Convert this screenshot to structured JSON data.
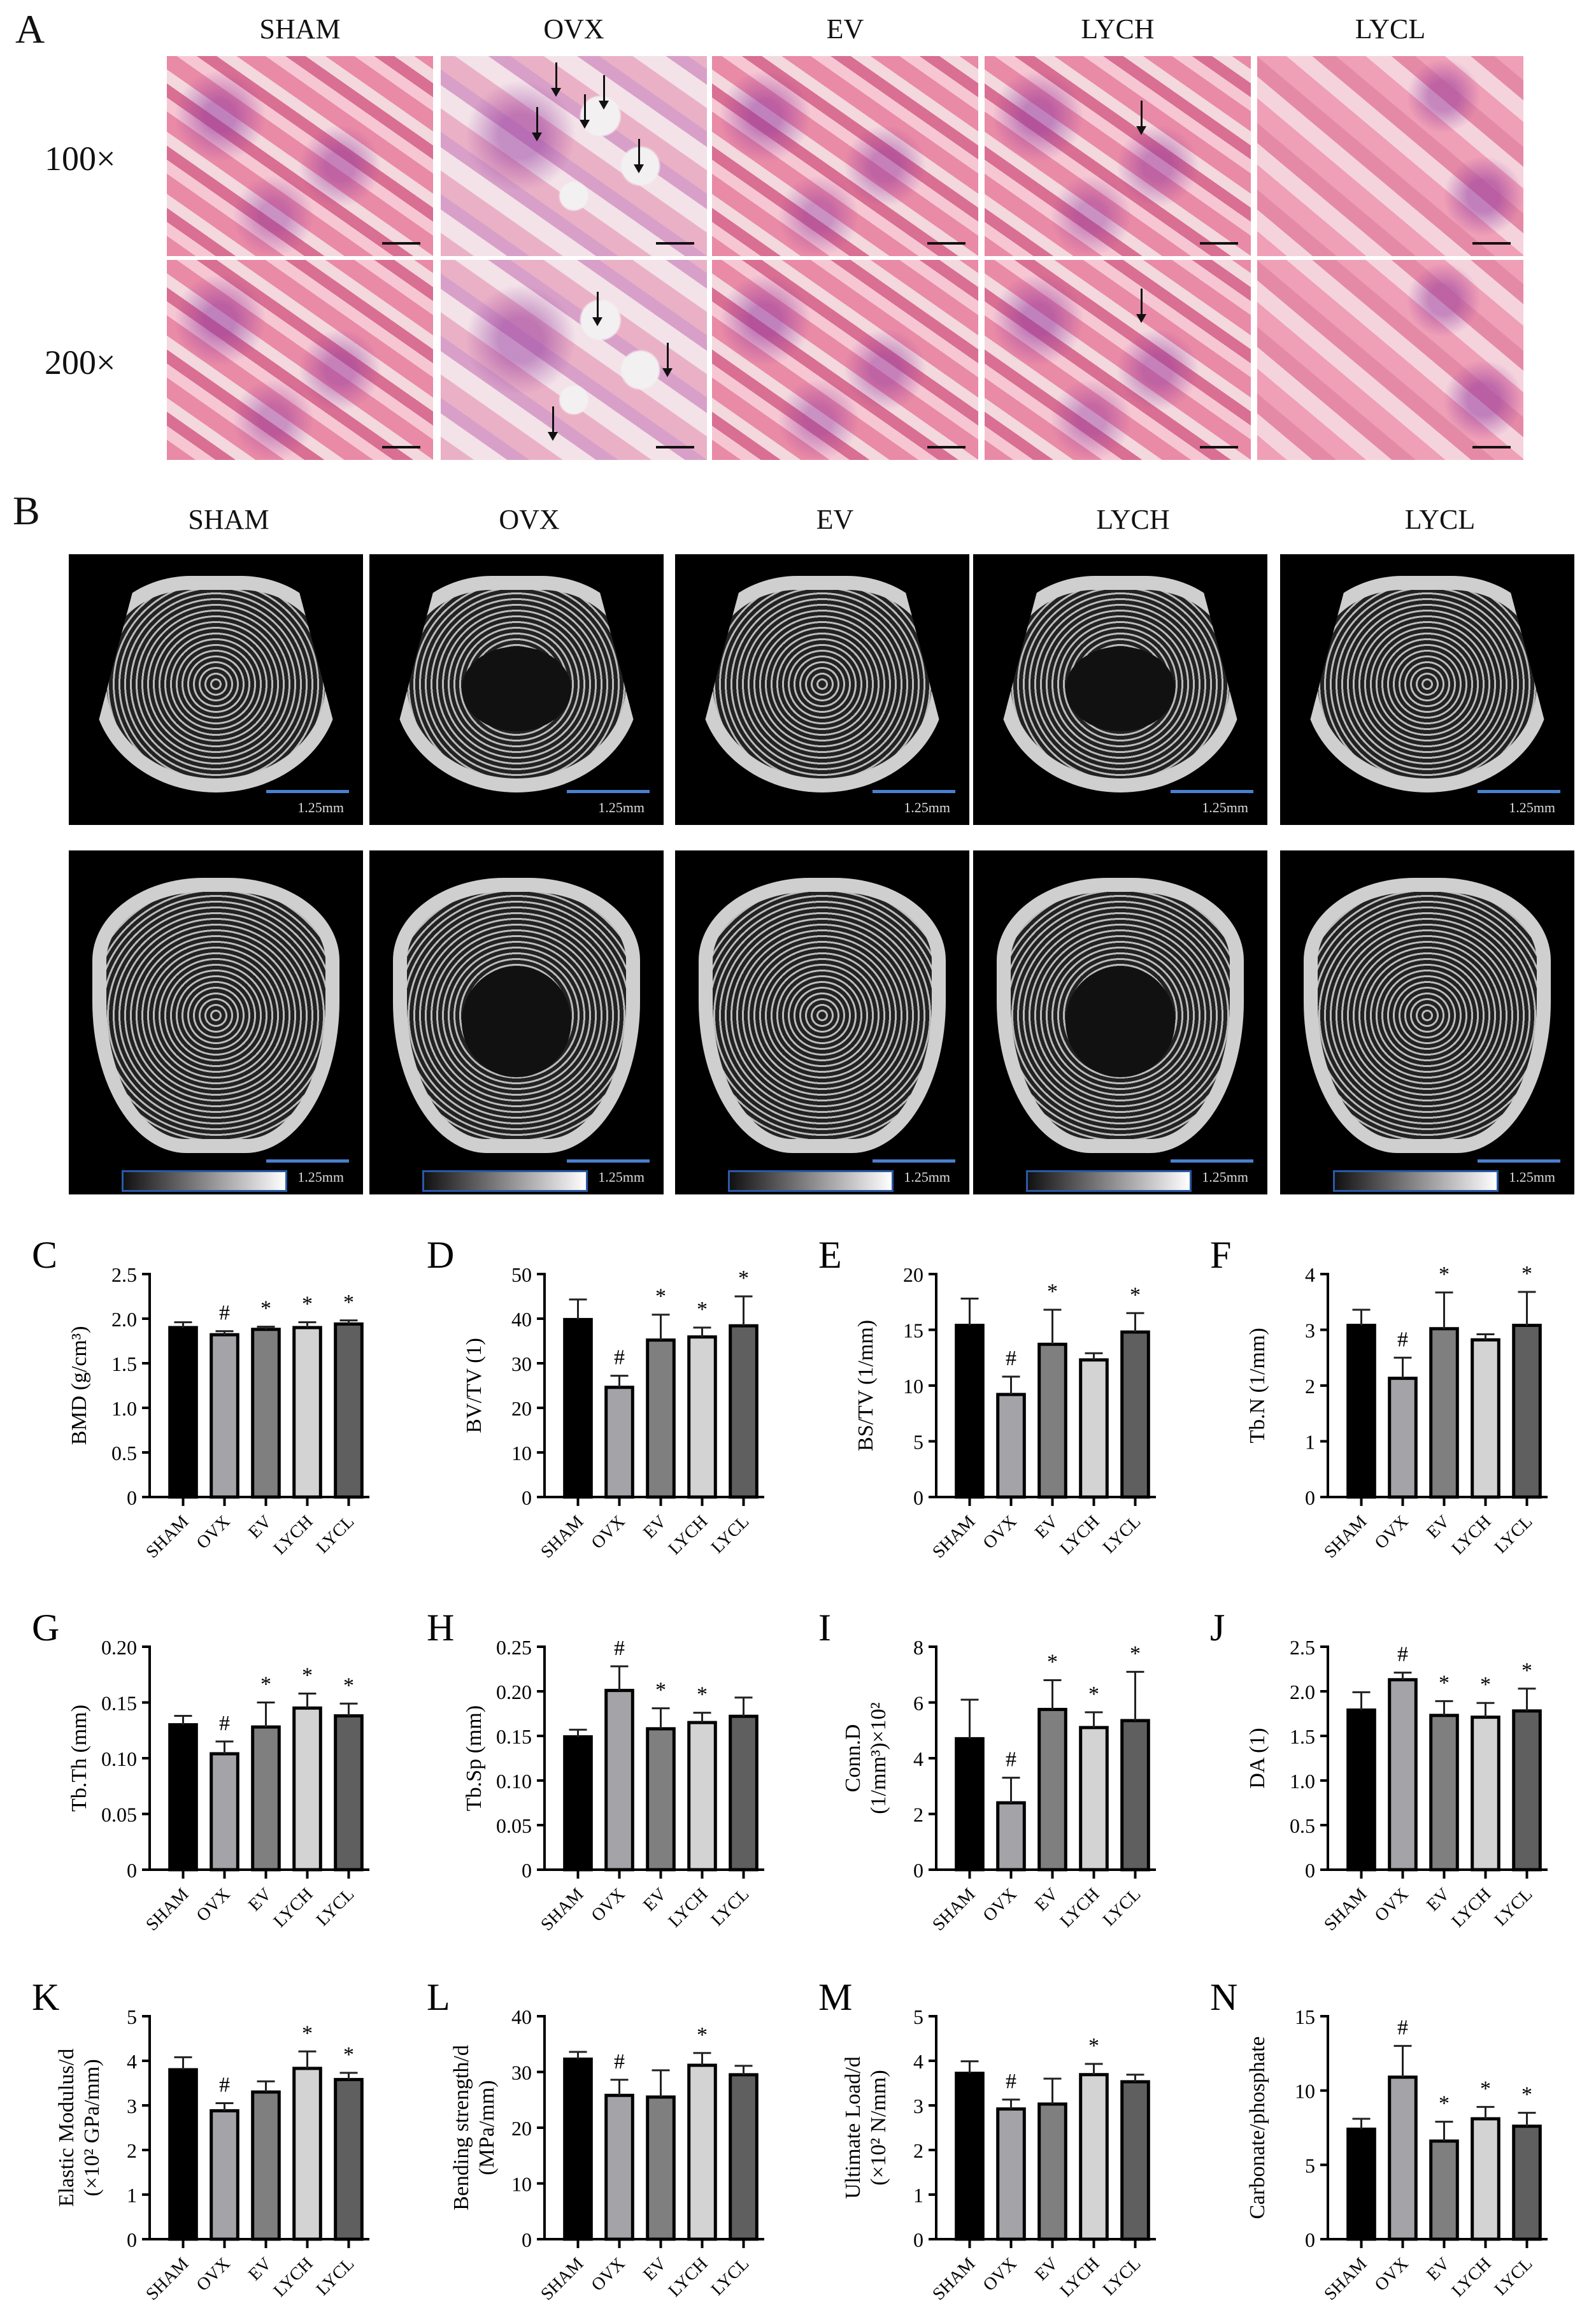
{
  "groups": [
    "SHAM",
    "OVX",
    "EV",
    "LYCH",
    "LYCL"
  ],
  "bar_colors": [
    "#000000",
    "#a3a3a8",
    "#7f7f7f",
    "#d3d3d3",
    "#5f5f5f"
  ],
  "panel_a": {
    "letter": "A",
    "columns": [
      "SHAM",
      "OVX",
      "EV",
      "LYCH",
      "LYCL"
    ],
    "rows": [
      "100×",
      "200×"
    ],
    "arrow_markers": {
      "OVX_100x": 5,
      "OVX_200x": 3,
      "LYCH_100x": 1,
      "LYCH_200x": 1
    }
  },
  "panel_b": {
    "letter": "B",
    "columns": [
      "SHAM",
      "OVX",
      "EV",
      "LYCH",
      "LYCL"
    ],
    "scale_label": "1.25mm"
  },
  "chart_data": [
    {
      "panel": "C",
      "type": "bar",
      "ylabel": "BMD (g/cm³)",
      "ylim": [
        0,
        2.5
      ],
      "yticks": [
        "0",
        "0.5",
        "1.0",
        "1.5",
        "2.0",
        "2.5"
      ],
      "categories": [
        "SHAM",
        "OVX",
        "EV",
        "LYCH",
        "LYCL"
      ],
      "values": [
        1.9,
        1.82,
        1.88,
        1.9,
        1.94
      ],
      "errors": [
        0.06,
        0.04,
        0.03,
        0.06,
        0.04
      ],
      "marks": [
        "",
        "#",
        "*",
        "*",
        "*"
      ]
    },
    {
      "panel": "D",
      "type": "bar",
      "ylabel": "BV/TV (1)",
      "ylim": [
        0,
        50
      ],
      "yticks": [
        "0",
        "10",
        "20",
        "30",
        "40",
        "50"
      ],
      "categories": [
        "SHAM",
        "OVX",
        "EV",
        "LYCH",
        "LYCL"
      ],
      "values": [
        39.8,
        24.6,
        35.2,
        35.9,
        38.4
      ],
      "errors": [
        4.5,
        2.6,
        5.7,
        2.1,
        6.6
      ],
      "marks": [
        "",
        "#",
        "*",
        "*",
        "*"
      ]
    },
    {
      "panel": "E",
      "type": "bar",
      "ylabel": "BS/TV (1/mm)",
      "ylim": [
        0,
        20
      ],
      "yticks": [
        "0",
        "5",
        "10",
        "15",
        "20"
      ],
      "categories": [
        "SHAM",
        "OVX",
        "EV",
        "LYCH",
        "LYCL"
      ],
      "values": [
        15.4,
        9.2,
        13.7,
        12.3,
        14.8
      ],
      "errors": [
        2.4,
        1.6,
        3.1,
        0.6,
        1.7
      ],
      "marks": [
        "",
        "#",
        "*",
        "",
        "*"
      ]
    },
    {
      "panel": "F",
      "type": "bar",
      "ylabel": "Tb.N (1/mm)",
      "ylim": [
        0,
        4
      ],
      "yticks": [
        "0",
        "1",
        "2",
        "3",
        "4"
      ],
      "categories": [
        "SHAM",
        "OVX",
        "EV",
        "LYCH",
        "LYCL"
      ],
      "values": [
        3.08,
        2.13,
        3.02,
        2.82,
        3.08
      ],
      "errors": [
        0.28,
        0.37,
        0.65,
        0.1,
        0.6
      ],
      "marks": [
        "",
        "#",
        "*",
        "",
        "*"
      ]
    },
    {
      "panel": "G",
      "type": "bar",
      "ylabel": "Tb.Th (mm)",
      "ylim": [
        0,
        0.2
      ],
      "yticks": [
        "0",
        "0.05",
        "0.10",
        "0.15",
        "0.20"
      ],
      "categories": [
        "SHAM",
        "OVX",
        "EV",
        "LYCH",
        "LYCL"
      ],
      "values": [
        0.13,
        0.104,
        0.128,
        0.145,
        0.138
      ],
      "errors": [
        0.008,
        0.011,
        0.022,
        0.013,
        0.011
      ],
      "marks": [
        "",
        "#",
        "*",
        "*",
        "*"
      ]
    },
    {
      "panel": "H",
      "type": "bar",
      "ylabel": "Tb.Sp (mm)",
      "ylim": [
        0,
        0.25
      ],
      "yticks": [
        "0",
        "0.05",
        "0.10",
        "0.15",
        "0.20",
        "0.25"
      ],
      "categories": [
        "SHAM",
        "OVX",
        "EV",
        "LYCH",
        "LYCL"
      ],
      "values": [
        0.149,
        0.201,
        0.158,
        0.165,
        0.172
      ],
      "errors": [
        0.008,
        0.027,
        0.023,
        0.011,
        0.021
      ],
      "marks": [
        "",
        "#",
        "*",
        "*",
        ""
      ]
    },
    {
      "panel": "I",
      "type": "bar",
      "ylabel": "Conn.D (1/mm³)×10²",
      "ylim": [
        0,
        8
      ],
      "yticks": [
        "0",
        "2",
        "4",
        "6",
        "8"
      ],
      "categories": [
        "SHAM",
        "OVX",
        "EV",
        "LYCH",
        "LYCL"
      ],
      "values": [
        4.7,
        2.4,
        5.75,
        5.1,
        5.35
      ],
      "errors": [
        1.4,
        0.9,
        1.05,
        0.55,
        1.75
      ],
      "marks": [
        "",
        "#",
        "*",
        "*",
        "*"
      ]
    },
    {
      "panel": "J",
      "type": "bar",
      "ylabel": "DA (1)",
      "ylim": [
        0,
        2.5
      ],
      "yticks": [
        "0",
        "0.5",
        "1.0",
        "1.5",
        "2.0",
        "2.5"
      ],
      "categories": [
        "SHAM",
        "OVX",
        "EV",
        "LYCH",
        "LYCL"
      ],
      "values": [
        1.79,
        2.13,
        1.73,
        1.71,
        1.78
      ],
      "errors": [
        0.2,
        0.08,
        0.16,
        0.16,
        0.25
      ],
      "marks": [
        "",
        "#",
        "*",
        "*",
        "*"
      ]
    },
    {
      "panel": "K",
      "type": "bar",
      "ylabel": "Elastic Modulus/d (×10² GPa/mm)",
      "ylim": [
        0,
        5
      ],
      "yticks": [
        "0",
        "1",
        "2",
        "3",
        "4",
        "5"
      ],
      "categories": [
        "SHAM",
        "OVX",
        "EV",
        "LYCH",
        "LYCL"
      ],
      "values": [
        3.8,
        2.88,
        3.3,
        3.83,
        3.58
      ],
      "errors": [
        0.28,
        0.17,
        0.24,
        0.38,
        0.15
      ],
      "marks": [
        "",
        "#",
        "",
        "*",
        "*"
      ]
    },
    {
      "panel": "L",
      "type": "bar",
      "ylabel": "Bending strength/d (MPa/mm)",
      "ylim": [
        0,
        40
      ],
      "yticks": [
        "0",
        "10",
        "20",
        "30",
        "40"
      ],
      "categories": [
        "SHAM",
        "OVX",
        "EV",
        "LYCH",
        "LYCL"
      ],
      "values": [
        32.3,
        25.8,
        25.5,
        31.2,
        29.5
      ],
      "errors": [
        1.3,
        2.8,
        4.8,
        2.2,
        1.6
      ],
      "marks": [
        "",
        "#",
        "",
        "*",
        ""
      ]
    },
    {
      "panel": "M",
      "type": "bar",
      "ylabel": "Ultimate Load/d (×10² N/mm)",
      "ylim": [
        0,
        5
      ],
      "yticks": [
        "0",
        "1",
        "2",
        "3",
        "4",
        "5"
      ],
      "categories": [
        "SHAM",
        "OVX",
        "EV",
        "LYCH",
        "LYCL"
      ],
      "values": [
        3.72,
        2.92,
        3.03,
        3.69,
        3.53
      ],
      "errors": [
        0.27,
        0.21,
        0.57,
        0.24,
        0.16
      ],
      "marks": [
        "",
        "#",
        "",
        "*",
        ""
      ]
    },
    {
      "panel": "N",
      "type": "bar",
      "ylabel": "Carbonate/phosphate",
      "ylim": [
        0,
        15
      ],
      "yticks": [
        "0",
        "5",
        "10",
        "15"
      ],
      "categories": [
        "SHAM",
        "OVX",
        "EV",
        "LYCH",
        "LYCL"
      ],
      "values": [
        7.4,
        10.9,
        6.6,
        8.1,
        7.6
      ],
      "errors": [
        0.7,
        2.1,
        1.3,
        0.8,
        0.9
      ],
      "marks": [
        "",
        "#",
        "*",
        "*",
        "*"
      ]
    }
  ]
}
